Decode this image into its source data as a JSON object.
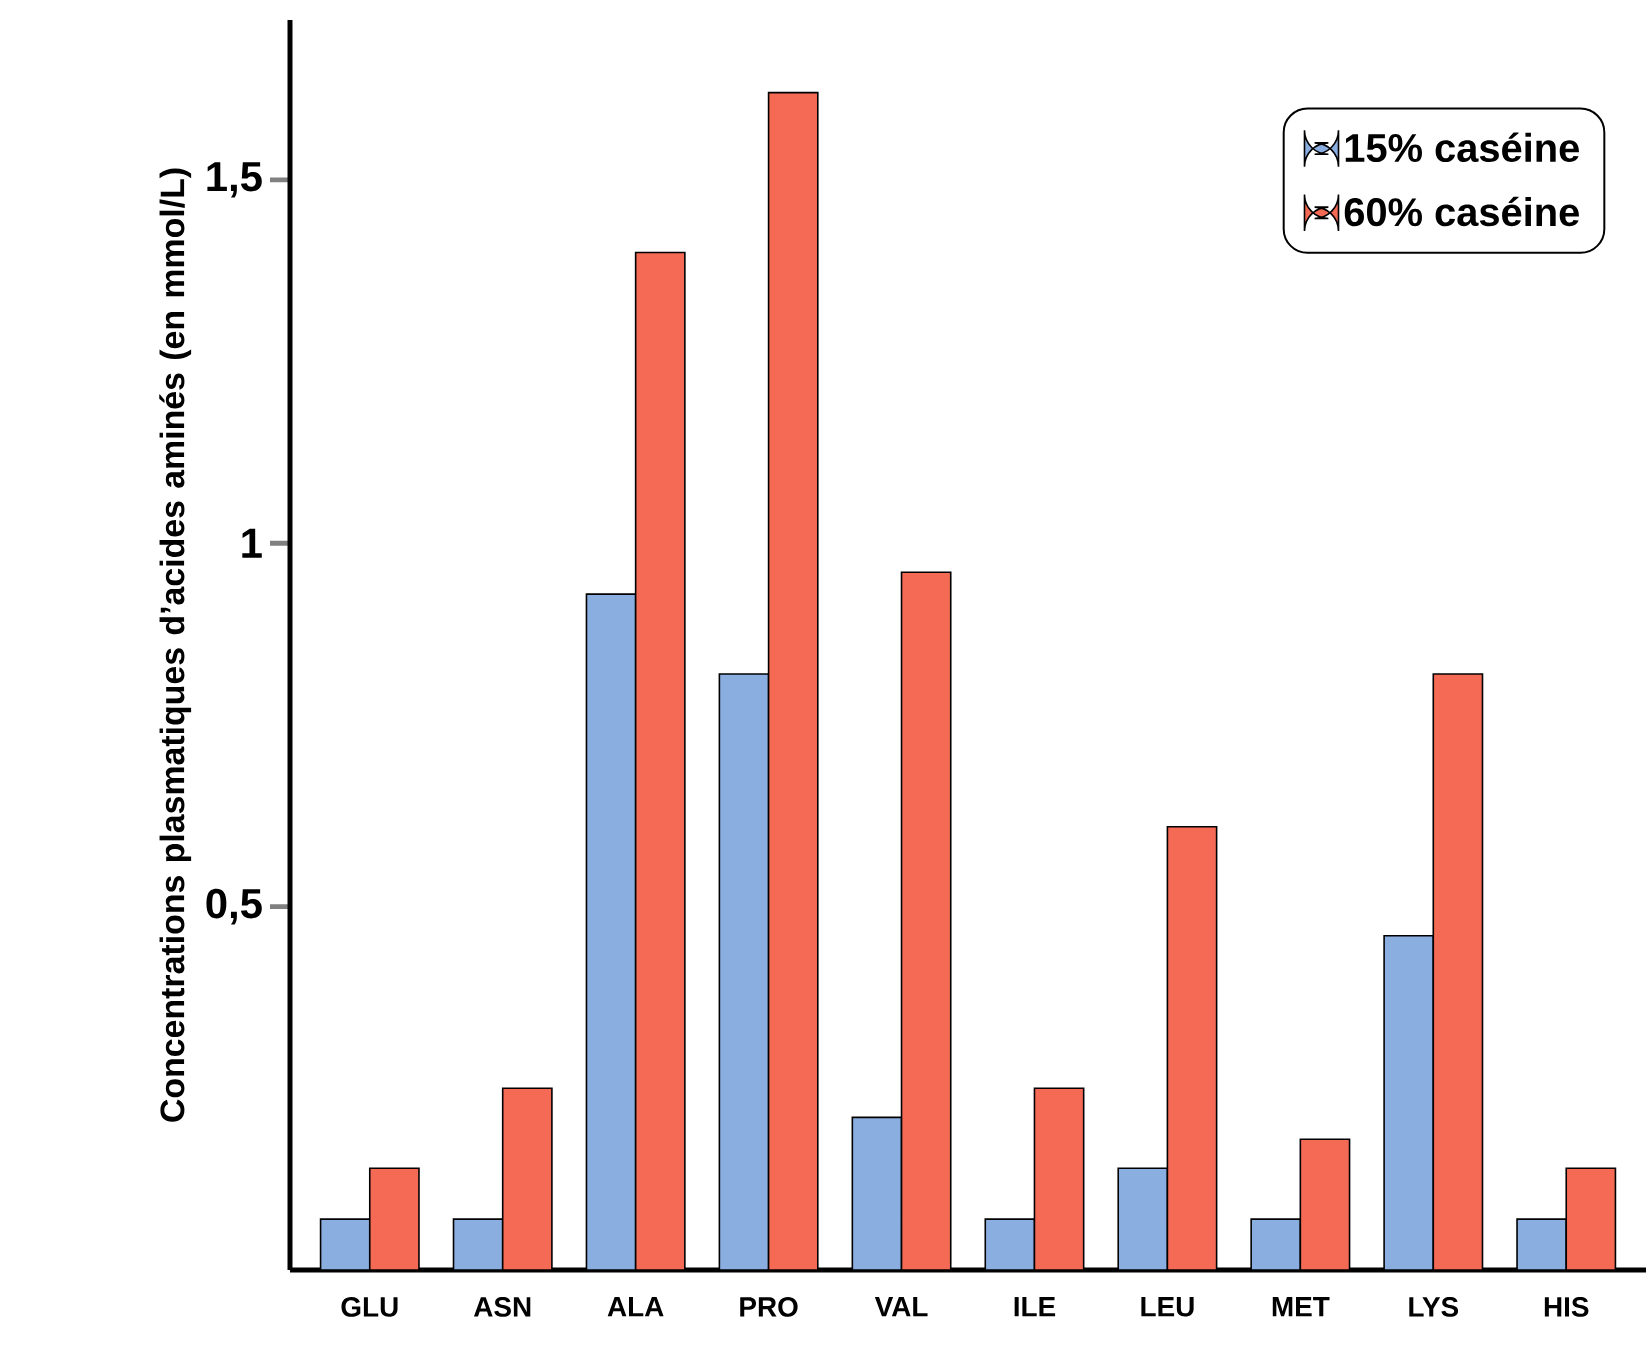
{
  "chart_data": {
    "type": "bar",
    "ylabel": "Concentrations plasmatiques d’acides aminés (en mmol/L)",
    "categories": [
      "GLU",
      "ASN",
      "ALA",
      "PRO",
      "VAL",
      "ILE",
      "LEU",
      "MET",
      "LYS",
      "HIS"
    ],
    "series": [
      {
        "name": "15% caséine",
        "color": "#8aaee0",
        "values": [
          0.07,
          0.07,
          0.93,
          0.82,
          0.21,
          0.07,
          0.14,
          0.07,
          0.46,
          0.07
        ]
      },
      {
        "name": "60% caséine",
        "color": "#f56a55",
        "values": [
          0.14,
          0.25,
          1.4,
          1.62,
          0.96,
          0.25,
          0.61,
          0.18,
          0.82,
          0.14
        ]
      }
    ],
    "ylim": [
      0,
      1.72
    ],
    "yticks": [
      {
        "value": 0.5,
        "label": "0,5"
      },
      1,
      {
        "value": 1.5,
        "label": "1,5"
      }
    ],
    "grid": false,
    "legend": "top right"
  }
}
